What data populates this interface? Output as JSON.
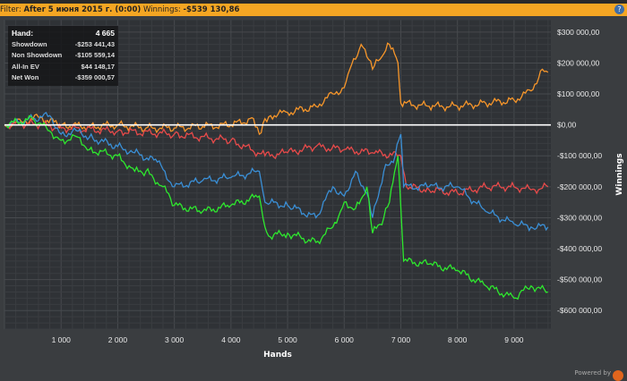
{
  "filter": {
    "label": "Filter:",
    "value": "After 5 июня 2015 г. (0:00)",
    "winnings_label": "Winnings:",
    "winnings_value": "-$539 130,86"
  },
  "stats": [
    {
      "label": "Hand:",
      "value": "4 665"
    },
    {
      "label": "Showdown",
      "value": "-$253 441,43"
    },
    {
      "label": "Non Showdown",
      "value": "-$105 559,14"
    },
    {
      "label": "All-In EV",
      "value": "$44 148,17"
    },
    {
      "label": "Net Won",
      "value": "-$359 000,57"
    }
  ],
  "powered_by": "Powered by",
  "chart_data": {
    "type": "line",
    "xlabel": "Hands",
    "ylabel": "Winnings",
    "xlim": [
      0,
      9650
    ],
    "ylim": [
      -660000,
      340000
    ],
    "grid": true,
    "xticks": [
      {
        "v": 1000,
        "l": "1 000"
      },
      {
        "v": 2000,
        "l": "2 000"
      },
      {
        "v": 3000,
        "l": "3 000"
      },
      {
        "v": 4000,
        "l": "4 000"
      },
      {
        "v": 5000,
        "l": "5 000"
      },
      {
        "v": 6000,
        "l": "6 000"
      },
      {
        "v": 7000,
        "l": "7 000"
      },
      {
        "v": 8000,
        "l": "8 000"
      },
      {
        "v": 9000,
        "l": "9 000"
      }
    ],
    "yticks": [
      {
        "v": 300000,
        "l": "$300 000,00"
      },
      {
        "v": 200000,
        "l": "$200 000,00"
      },
      {
        "v": 100000,
        "l": "$100 000,00"
      },
      {
        "v": 0,
        "l": "$0,00"
      },
      {
        "v": -100000,
        "l": "-$100 000,00"
      },
      {
        "v": -200000,
        "l": "-$200 000,00"
      },
      {
        "v": -300000,
        "l": "-$300 000,00"
      },
      {
        "v": -400000,
        "l": "-$400 000,00"
      },
      {
        "v": -500000,
        "l": "-$500 000,00"
      },
      {
        "v": -600000,
        "l": "-$600 000,00"
      }
    ],
    "series": [
      {
        "color": "#f7962a",
        "points": [
          [
            0,
            0
          ],
          [
            300,
            10000
          ],
          [
            600,
            25000
          ],
          [
            1000,
            0
          ],
          [
            1500,
            -5000
          ],
          [
            2000,
            0
          ],
          [
            2500,
            -10000
          ],
          [
            3000,
            -10000
          ],
          [
            3500,
            -5000
          ],
          [
            4000,
            0
          ],
          [
            4400,
            20000
          ],
          [
            4500,
            -30000
          ],
          [
            4600,
            20000
          ],
          [
            4700,
            30000
          ],
          [
            5000,
            40000
          ],
          [
            5500,
            60000
          ],
          [
            5800,
            100000
          ],
          [
            6000,
            120000
          ],
          [
            6100,
            180000
          ],
          [
            6300,
            260000
          ],
          [
            6400,
            220000
          ],
          [
            6500,
            180000
          ],
          [
            6700,
            230000
          ],
          [
            6800,
            260000
          ],
          [
            6950,
            200000
          ],
          [
            7000,
            70000
          ],
          [
            7500,
            60000
          ],
          [
            8000,
            60000
          ],
          [
            8500,
            70000
          ],
          [
            9000,
            80000
          ],
          [
            9300,
            110000
          ],
          [
            9500,
            180000
          ],
          [
            9600,
            170000
          ]
        ]
      },
      {
        "color": "#e84a4a",
        "points": [
          [
            0,
            0
          ],
          [
            500,
            5000
          ],
          [
            1000,
            -10000
          ],
          [
            2000,
            -20000
          ],
          [
            3000,
            -30000
          ],
          [
            4000,
            -50000
          ],
          [
            4600,
            -100000
          ],
          [
            5000,
            -90000
          ],
          [
            5500,
            -70000
          ],
          [
            6000,
            -80000
          ],
          [
            6500,
            -90000
          ],
          [
            7000,
            -100000
          ],
          [
            7100,
            -200000
          ],
          [
            7500,
            -210000
          ],
          [
            8000,
            -220000
          ],
          [
            8500,
            -200000
          ],
          [
            9000,
            -200000
          ],
          [
            9300,
            -210000
          ],
          [
            9600,
            -200000
          ]
        ]
      },
      {
        "color": "#3a8fd6",
        "points": [
          [
            0,
            0
          ],
          [
            500,
            20000
          ],
          [
            800,
            30000
          ],
          [
            1000,
            -30000
          ],
          [
            1300,
            -20000
          ],
          [
            1500,
            -40000
          ],
          [
            2000,
            -70000
          ],
          [
            2300,
            -90000
          ],
          [
            2700,
            -120000
          ],
          [
            3000,
            -200000
          ],
          [
            3500,
            -180000
          ],
          [
            4000,
            -170000
          ],
          [
            4500,
            -150000
          ],
          [
            4600,
            -250000
          ],
          [
            5000,
            -260000
          ],
          [
            5500,
            -300000
          ],
          [
            5800,
            -200000
          ],
          [
            6000,
            -230000
          ],
          [
            6200,
            -150000
          ],
          [
            6400,
            -220000
          ],
          [
            6500,
            -300000
          ],
          [
            6700,
            -150000
          ],
          [
            6900,
            -100000
          ],
          [
            7000,
            -30000
          ],
          [
            7050,
            -200000
          ],
          [
            7500,
            -200000
          ],
          [
            8000,
            -200000
          ],
          [
            8500,
            -280000
          ],
          [
            9000,
            -320000
          ],
          [
            9300,
            -330000
          ],
          [
            9600,
            -330000
          ]
        ]
      },
      {
        "color": "#2ee82e",
        "points": [
          [
            0,
            0
          ],
          [
            500,
            20000
          ],
          [
            800,
            -20000
          ],
          [
            1000,
            -50000
          ],
          [
            1300,
            -40000
          ],
          [
            1500,
            -80000
          ],
          [
            2000,
            -100000
          ],
          [
            2300,
            -150000
          ],
          [
            2500,
            -150000
          ],
          [
            2800,
            -200000
          ],
          [
            3000,
            -260000
          ],
          [
            3500,
            -280000
          ],
          [
            4000,
            -260000
          ],
          [
            4500,
            -230000
          ],
          [
            4600,
            -330000
          ],
          [
            4665,
            -359000
          ],
          [
            5000,
            -350000
          ],
          [
            5500,
            -380000
          ],
          [
            5800,
            -330000
          ],
          [
            6000,
            -250000
          ],
          [
            6200,
            -270000
          ],
          [
            6400,
            -200000
          ],
          [
            6500,
            -350000
          ],
          [
            6700,
            -300000
          ],
          [
            6800,
            -250000
          ],
          [
            6950,
            -100000
          ],
          [
            7050,
            -440000
          ],
          [
            7500,
            -450000
          ],
          [
            8000,
            -470000
          ],
          [
            8500,
            -520000
          ],
          [
            9000,
            -560000
          ],
          [
            9300,
            -520000
          ],
          [
            9600,
            -540000
          ]
        ]
      }
    ]
  }
}
